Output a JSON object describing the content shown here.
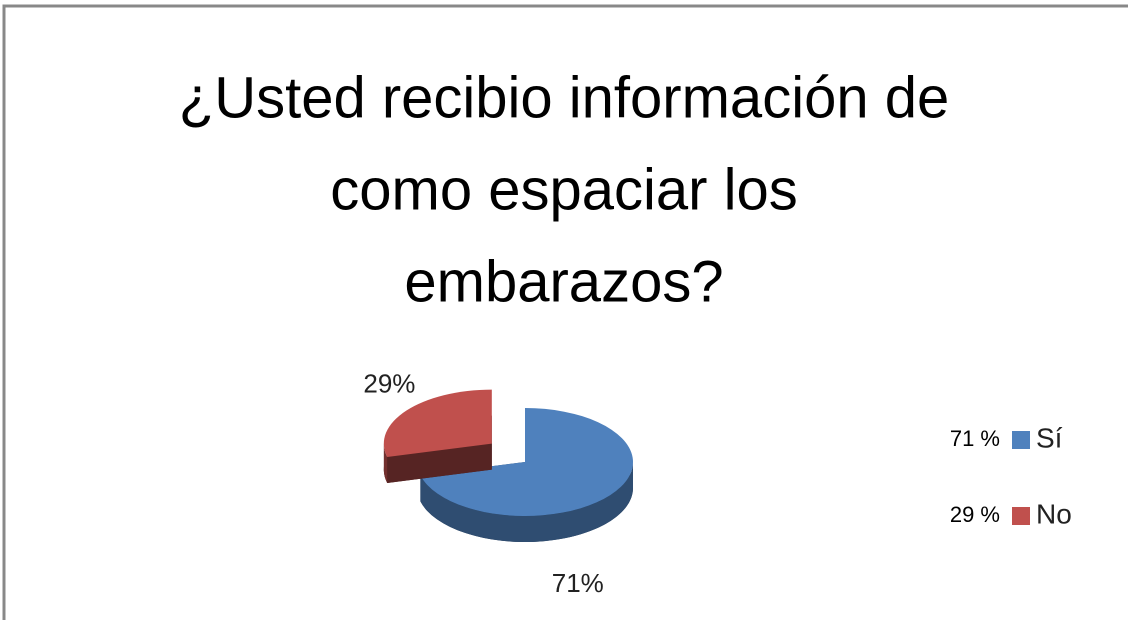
{
  "chart_data": {
    "type": "pie",
    "title": [
      "¿Usted recibio información de",
      "como espaciar los",
      "embarazos?"
    ],
    "categories": [
      "Sí",
      "No"
    ],
    "values": [
      71,
      29
    ],
    "value_labels": [
      "71%",
      "29%"
    ],
    "legend_labels": [
      "71 %",
      "29 %"
    ],
    "colors": [
      "#4f81bd",
      "#c0504d"
    ],
    "legend": "right"
  }
}
